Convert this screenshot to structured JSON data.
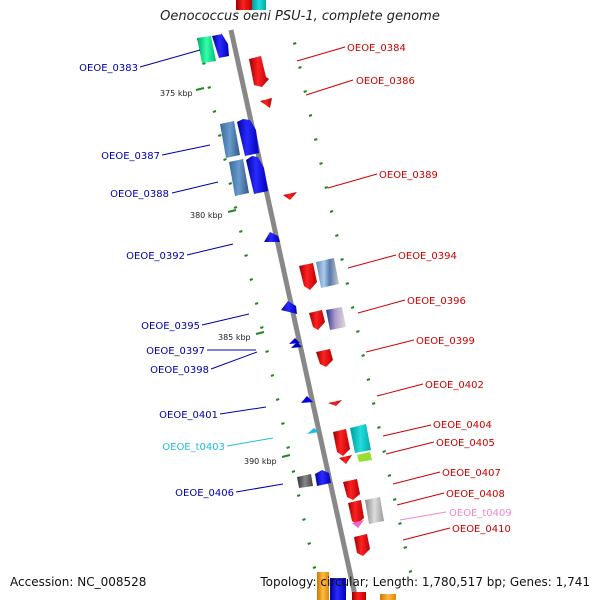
{
  "title": "Oenococcus oeni PSU-1, complete genome",
  "accession": "Accession: NC_008528",
  "topology": "Topology: circular; Length: 1,780,517 bp; Genes: 1,741",
  "colors": {
    "left_label": "#0000aa",
    "right_label": "#cc0000",
    "trna_left": "#22bbdd",
    "trna_right": "#ee88cc",
    "backbone": "#888888",
    "ticks": "#228822"
  },
  "scale_labels": [
    "375 kbp",
    "380 kbp",
    "385 kbp",
    "390 kbp"
  ],
  "left_genes": [
    "OEOE_0383",
    "OEOE_0387",
    "OEOE_0388",
    "OEOE_0392",
    "OEOE_0395",
    "OEOE_0397",
    "OEOE_0398",
    "OEOE_0401",
    "OEOE_t0403",
    "OEOE_0406"
  ],
  "right_genes": [
    "OEOE_0384",
    "OEOE_0386",
    "OEOE_0389",
    "OEOE_0394",
    "OEOE_0396",
    "OEOE_0399",
    "OEOE_0402",
    "OEOE_0404",
    "OEOE_0405",
    "OEOE_0407",
    "OEOE_0408",
    "OEOE_t0409",
    "OEOE_0410"
  ]
}
